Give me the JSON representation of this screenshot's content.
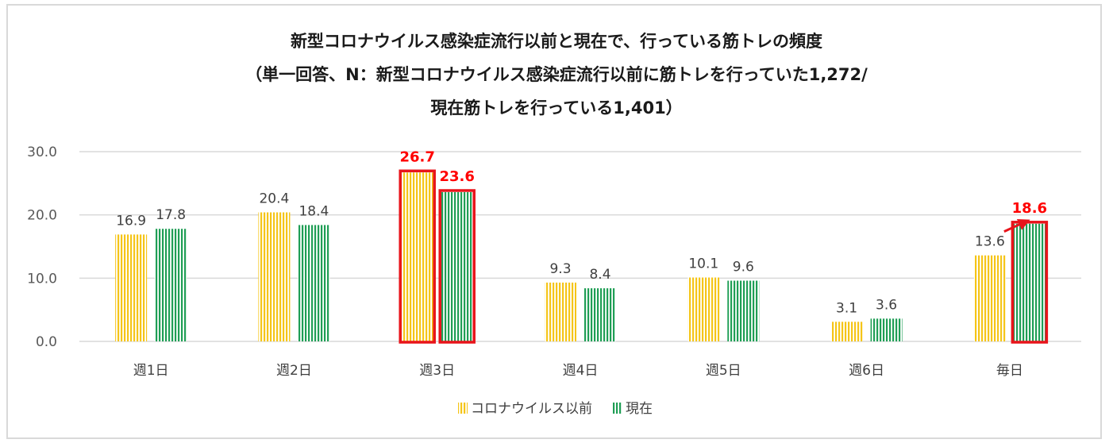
{
  "title_lines": [
    "新型コロナウイルス感染症流行以前と現在で、行っている筋トレの頻度",
    "（単一回答、N：新型コロナウイルス感染症流行以前に筋トレを行っていた1,272/",
    "現在筋トレを行っている1,401）"
  ],
  "colors": {
    "series_before": "#f5c518",
    "series_now": "#1f9e55",
    "highlight": "#e8141b",
    "gridline": "#d9d9d9",
    "frame_border": "#d9d9d9"
  },
  "chart_data": {
    "type": "bar",
    "categories": [
      "週1日",
      "週2日",
      "週3日",
      "週4日",
      "週5日",
      "週6日",
      "毎日"
    ],
    "series": [
      {
        "name": "コロナウイルス以前",
        "values": [
          16.9,
          20.4,
          26.7,
          9.3,
          10.1,
          3.1,
          13.6
        ],
        "labels": [
          "16.9",
          "20.4",
          "26.7",
          "9.3",
          "10.1",
          "3.1",
          "13.6"
        ]
      },
      {
        "name": "現在",
        "values": [
          17.8,
          18.4,
          23.6,
          8.4,
          9.6,
          3.6,
          18.6
        ],
        "labels": [
          "17.8",
          "18.4",
          "23.6",
          "8.4",
          "9.6",
          "3.6",
          "18.6"
        ]
      }
    ],
    "y_ticks": [
      "0.0",
      "10.0",
      "20.0",
      "30.0"
    ],
    "ylim": [
      0,
      30
    ],
    "grid": true,
    "legend_position": "bottom",
    "highlighted_bars": [
      {
        "series": 0,
        "category": 2
      },
      {
        "series": 1,
        "category": 2
      },
      {
        "series": 1,
        "category": 6
      }
    ],
    "annotations": [
      {
        "type": "arrow",
        "from": {
          "series": 0,
          "category": 6
        },
        "to": {
          "series": 1,
          "category": 6
        }
      }
    ]
  }
}
